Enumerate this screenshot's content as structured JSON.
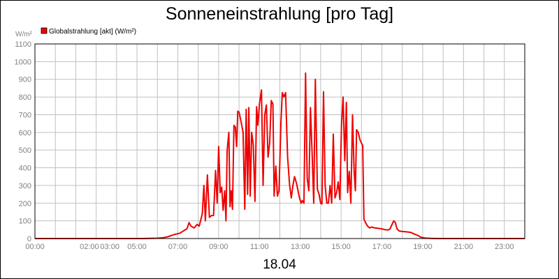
{
  "chart_data": {
    "type": "line",
    "title": "Sonneneinstrahlung [pro Tag]",
    "ylabel": "W/m²",
    "xlabel": "18.04",
    "ylim": [
      0,
      1100
    ],
    "xlim": [
      0,
      24
    ],
    "y_ticks": [
      "0",
      "100",
      "200",
      "300",
      "400",
      "500",
      "600",
      "700",
      "800",
      "900",
      "1000",
      "1100"
    ],
    "x_ticks": [
      {
        "t": 0,
        "label": "00:00"
      },
      {
        "t": 2.667,
        "label": "02:00"
      },
      {
        "t": 3.67,
        "label": "03:00"
      },
      {
        "t": 5,
        "label": "05:00"
      },
      {
        "t": 7,
        "label": "07:00"
      },
      {
        "t": 9,
        "label": "09:00"
      },
      {
        "t": 11,
        "label": "11:00"
      },
      {
        "t": 13,
        "label": "13:00"
      },
      {
        "t": 15,
        "label": "15:00"
      },
      {
        "t": 17,
        "label": "17:00"
      },
      {
        "t": 19,
        "label": "19:00"
      },
      {
        "t": 21,
        "label": "21:00"
      },
      {
        "t": 23,
        "label": "23:00"
      }
    ],
    "grid": true,
    "legend_position": "top-left",
    "colors": {
      "series": "#ee0000",
      "grid": "#c0c0c0",
      "axis": "#000000",
      "tick_text": "#808080"
    },
    "series": [
      {
        "name": "Globalstrahlung [akt] (W/m²)",
        "points": [
          [
            0,
            0
          ],
          [
            5.25,
            0
          ],
          [
            6.0,
            2
          ],
          [
            6.3,
            5
          ],
          [
            6.5,
            10
          ],
          [
            6.7,
            18
          ],
          [
            6.9,
            25
          ],
          [
            7.1,
            30
          ],
          [
            7.3,
            45
          ],
          [
            7.45,
            55
          ],
          [
            7.55,
            90
          ],
          [
            7.65,
            70
          ],
          [
            7.8,
            60
          ],
          [
            7.95,
            80
          ],
          [
            8.05,
            70
          ],
          [
            8.2,
            140
          ],
          [
            8.28,
            300
          ],
          [
            8.35,
            100
          ],
          [
            8.45,
            360
          ],
          [
            8.55,
            120
          ],
          [
            8.65,
            130
          ],
          [
            8.75,
            130
          ],
          [
            8.85,
            385
          ],
          [
            8.93,
            200
          ],
          [
            9.0,
            520
          ],
          [
            9.08,
            260
          ],
          [
            9.15,
            290
          ],
          [
            9.22,
            160
          ],
          [
            9.3,
            270
          ],
          [
            9.36,
            100
          ],
          [
            9.42,
            500
          ],
          [
            9.5,
            600
          ],
          [
            9.56,
            180
          ],
          [
            9.62,
            270
          ],
          [
            9.68,
            165
          ],
          [
            9.75,
            640
          ],
          [
            9.82,
            630
          ],
          [
            9.88,
            520
          ],
          [
            9.94,
            720
          ],
          [
            10.0,
            715
          ],
          [
            10.1,
            660
          ],
          [
            10.2,
            600
          ],
          [
            10.28,
            165
          ],
          [
            10.35,
            730
          ],
          [
            10.42,
            250
          ],
          [
            10.48,
            740
          ],
          [
            10.55,
            240
          ],
          [
            10.62,
            600
          ],
          [
            10.7,
            530
          ],
          [
            10.78,
            210
          ],
          [
            10.86,
            745
          ],
          [
            10.92,
            640
          ],
          [
            11.0,
            760
          ],
          [
            11.1,
            840
          ],
          [
            11.18,
            300
          ],
          [
            11.26,
            700
          ],
          [
            11.34,
            755
          ],
          [
            11.42,
            460
          ],
          [
            11.5,
            540
          ],
          [
            11.58,
            780
          ],
          [
            11.66,
            760
          ],
          [
            11.72,
            240
          ],
          [
            11.8,
            410
          ],
          [
            11.88,
            240
          ],
          [
            11.96,
            270
          ],
          [
            12.05,
            650
          ],
          [
            12.12,
            825
          ],
          [
            12.2,
            800
          ],
          [
            12.28,
            825
          ],
          [
            12.38,
            460
          ],
          [
            12.48,
            300
          ],
          [
            12.56,
            230
          ],
          [
            12.64,
            300
          ],
          [
            12.72,
            350
          ],
          [
            12.82,
            310
          ],
          [
            12.94,
            240
          ],
          [
            13.04,
            200
          ],
          [
            13.1,
            215
          ],
          [
            13.18,
            200
          ],
          [
            13.26,
            935
          ],
          [
            13.34,
            340
          ],
          [
            13.42,
            270
          ],
          [
            13.5,
            740
          ],
          [
            13.58,
            490
          ],
          [
            13.66,
            200
          ],
          [
            13.74,
            900
          ],
          [
            13.84,
            280
          ],
          [
            13.92,
            250
          ],
          [
            14.0,
            200
          ],
          [
            14.06,
            195
          ],
          [
            14.14,
            830
          ],
          [
            14.22,
            300
          ],
          [
            14.3,
            200
          ],
          [
            14.38,
            200
          ],
          [
            14.46,
            300
          ],
          [
            14.54,
            200
          ],
          [
            14.62,
            590
          ],
          [
            14.7,
            230
          ],
          [
            14.78,
            260
          ],
          [
            14.86,
            320
          ],
          [
            14.94,
            220
          ],
          [
            15.02,
            640
          ],
          [
            15.1,
            800
          ],
          [
            15.18,
            440
          ],
          [
            15.26,
            770
          ],
          [
            15.32,
            260
          ],
          [
            15.4,
            380
          ],
          [
            15.48,
            200
          ],
          [
            15.56,
            700
          ],
          [
            15.64,
            380
          ],
          [
            15.7,
            270
          ],
          [
            15.76,
            615
          ],
          [
            15.84,
            600
          ],
          [
            15.92,
            560
          ],
          [
            16.0,
            540
          ],
          [
            16.06,
            525
          ],
          [
            16.12,
            110
          ],
          [
            16.2,
            90
          ],
          [
            16.3,
            70
          ],
          [
            16.4,
            60
          ],
          [
            16.5,
            65
          ],
          [
            16.65,
            60
          ],
          [
            16.8,
            58
          ],
          [
            17.0,
            55
          ],
          [
            17.15,
            50
          ],
          [
            17.3,
            48
          ],
          [
            17.4,
            55
          ],
          [
            17.5,
            80
          ],
          [
            17.58,
            100
          ],
          [
            17.66,
            90
          ],
          [
            17.74,
            55
          ],
          [
            17.85,
            42
          ],
          [
            18.0,
            40
          ],
          [
            18.2,
            38
          ],
          [
            18.4,
            35
          ],
          [
            18.6,
            25
          ],
          [
            18.75,
            18
          ],
          [
            18.9,
            8
          ],
          [
            19.1,
            3
          ],
          [
            19.4,
            1
          ],
          [
            19.7,
            0
          ],
          [
            24,
            0
          ]
        ]
      }
    ]
  }
}
